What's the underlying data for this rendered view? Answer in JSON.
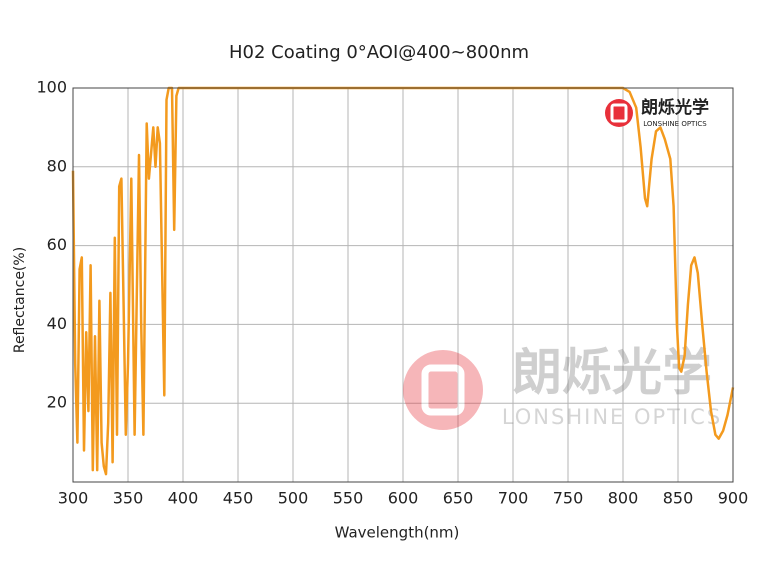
{
  "chart_data": {
    "type": "line",
    "title": "H02 Coating 0°AOI@400~800nm",
    "x_label": "Wavelength(nm)",
    "y_label": "Reflectance(%)",
    "logo": {
      "name": "朗烁光学",
      "subtitle": "LONSHINE OPTICS"
    },
    "xlim": [
      300,
      900
    ],
    "ylim": [
      0,
      100
    ],
    "xticks": [
      300,
      350,
      400,
      450,
      500,
      550,
      600,
      650,
      700,
      750,
      800,
      850,
      900
    ],
    "yticks": [
      20,
      40,
      60,
      80,
      100
    ],
    "grid": true,
    "x": [
      300,
      302,
      304,
      306,
      308,
      310,
      312,
      314,
      316,
      318,
      320,
      322,
      324,
      326,
      328,
      330,
      332,
      334,
      336,
      338,
      340,
      342,
      344,
      346,
      348,
      350,
      353,
      356,
      360,
      362,
      364,
      367,
      369,
      373,
      375,
      377,
      379,
      383,
      385,
      387,
      390,
      392,
      394,
      396,
      800,
      806,
      812,
      816,
      820,
      822,
      826,
      830,
      834,
      838,
      843,
      846,
      849,
      851,
      853,
      856,
      859,
      862,
      865,
      868,
      872,
      876,
      880,
      884,
      887,
      891,
      895,
      900
    ],
    "series": [
      {
        "name": "H02",
        "color": "#f39a1e",
        "values": [
          79,
          30,
          10,
          54,
          57,
          8,
          38,
          18,
          55,
          3,
          37,
          3,
          46,
          10,
          4,
          2,
          15,
          48,
          5,
          62,
          12,
          75,
          77,
          45,
          12,
          30,
          77,
          12,
          83,
          40,
          12,
          91,
          77,
          90,
          80,
          90,
          86,
          22,
          97,
          100,
          100,
          64,
          98,
          100,
          100,
          99,
          95,
          85,
          72,
          70,
          82,
          89,
          90,
          87,
          82,
          70,
          40,
          29,
          28,
          32,
          45,
          55,
          57,
          53,
          40,
          28,
          18,
          12,
          11,
          13,
          17,
          24
        ]
      }
    ]
  }
}
